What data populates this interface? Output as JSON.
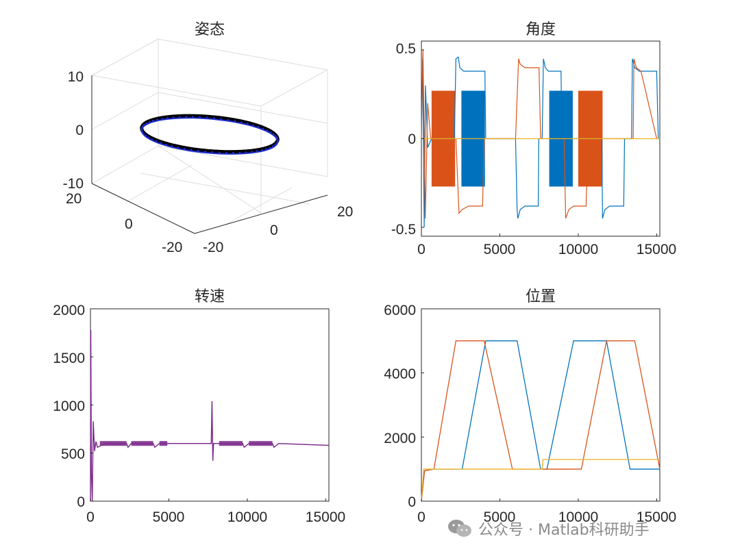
{
  "chart_data": [
    {
      "panel": "attitude",
      "type": "scatter",
      "title": "姿态",
      "subtitle": "3D",
      "xlim": [
        -20,
        20
      ],
      "ylim": [
        -20,
        20
      ],
      "zlim": [
        -10,
        10
      ],
      "xticks": [
        "-20",
        "0",
        "20"
      ],
      "yticks": [
        "-20",
        "0",
        "20"
      ],
      "zticks": [
        "-10",
        "0",
        "10"
      ],
      "ring": {
        "radius": 15,
        "z": 0,
        "colors": [
          "#000000",
          "#1f2fd0"
        ]
      },
      "grid": true
    },
    {
      "panel": "angle",
      "type": "line",
      "title": "角度",
      "xlim": [
        0,
        15200
      ],
      "ylim": [
        -0.55,
        0.55
      ],
      "xticks": [
        "0",
        "5000",
        "10000",
        "15000"
      ],
      "yticks": [
        "-0.5",
        "0",
        "0.5"
      ],
      "series": [
        {
          "color": "#0072BD",
          "points": [
            [
              0,
              0
            ],
            [
              80,
              0.45
            ],
            [
              180,
              -0.5
            ],
            [
              260,
              0.3
            ],
            [
              400,
              -0.05
            ],
            [
              650,
              0
            ],
            [
              2100,
              0
            ],
            [
              2200,
              0.45
            ],
            [
              2350,
              0.46
            ],
            [
              2450,
              0.4
            ],
            [
              2700,
              0.38
            ],
            [
              3500,
              0.38
            ],
            [
              4050,
              0.38
            ],
            [
              4100,
              0
            ],
            [
              6000,
              0
            ],
            [
              6100,
              -0.4
            ],
            [
              6150,
              -0.45
            ],
            [
              6300,
              -0.4
            ],
            [
              6600,
              -0.38
            ],
            [
              7450,
              -0.38
            ],
            [
              7480,
              0
            ],
            [
              7700,
              0
            ],
            [
              7780,
              0.45
            ],
            [
              7900,
              0.4
            ],
            [
              8100,
              0.38
            ],
            [
              8900,
              0.38
            ],
            [
              8950,
              0
            ],
            [
              11500,
              0
            ],
            [
              11550,
              -0.45
            ],
            [
              11700,
              -0.4
            ],
            [
              12000,
              -0.38
            ],
            [
              12900,
              -0.38
            ],
            [
              12950,
              0
            ],
            [
              13400,
              0
            ],
            [
              13450,
              0.45
            ],
            [
              13600,
              0.4
            ],
            [
              13900,
              0.38
            ],
            [
              15000,
              0.38
            ],
            [
              15100,
              0
            ]
          ]
        },
        {
          "color": "#D95319",
          "points": [
            [
              0,
              0
            ],
            [
              100,
              0.5
            ],
            [
              250,
              -0.45
            ],
            [
              400,
              0.2
            ],
            [
              600,
              0
            ],
            [
              2200,
              0
            ],
            [
              2400,
              -0.42
            ],
            [
              2600,
              -0.4
            ],
            [
              3000,
              -0.38
            ],
            [
              3900,
              -0.38
            ],
            [
              4000,
              0
            ],
            [
              6000,
              0
            ],
            [
              6200,
              0.45
            ],
            [
              6300,
              0.42
            ],
            [
              6600,
              0.4
            ],
            [
              7500,
              0.4
            ],
            [
              7600,
              0
            ],
            [
              9100,
              0
            ],
            [
              9200,
              -0.45
            ],
            [
              9400,
              -0.4
            ],
            [
              9700,
              -0.38
            ],
            [
              10500,
              -0.38
            ],
            [
              10600,
              0
            ],
            [
              13500,
              0
            ],
            [
              13550,
              0.45
            ],
            [
              13700,
              0.4
            ],
            [
              14000,
              0.38
            ],
            [
              15000,
              0
            ],
            [
              15100,
              0
            ]
          ]
        },
        {
          "color": "#EDB120",
          "points": [
            [
              0,
              0
            ],
            [
              15200,
              0
            ]
          ]
        }
      ],
      "bands": [
        {
          "color": "#D95319",
          "x0": 650,
          "x1": 2150,
          "y0": -0.27,
          "y1": 0.27
        },
        {
          "color": "#0072BD",
          "x0": 2550,
          "x1": 4050,
          "y0": -0.27,
          "y1": 0.27
        },
        {
          "color": "#0072BD",
          "x0": 8150,
          "x1": 9650,
          "y0": -0.27,
          "y1": 0.27
        },
        {
          "color": "#D95319",
          "x0": 10000,
          "x1": 11550,
          "y0": -0.27,
          "y1": 0.27
        }
      ],
      "grid": false
    },
    {
      "panel": "speed",
      "type": "line",
      "title": "转速",
      "xlim": [
        0,
        15200
      ],
      "ylim": [
        0,
        2000
      ],
      "xticks": [
        "0",
        "5000",
        "10000",
        "15000"
      ],
      "yticks": [
        "0",
        "500",
        "1000",
        "1500",
        "2000"
      ],
      "series": [
        {
          "color": "#7E2F8E",
          "points": [
            [
              0,
              0
            ],
            [
              20,
              1780
            ],
            [
              60,
              300
            ],
            [
              120,
              0
            ],
            [
              180,
              830
            ],
            [
              260,
              520
            ],
            [
              350,
              620
            ],
            [
              450,
              560
            ],
            [
              700,
              580
            ],
            [
              1000,
              600
            ],
            [
              2300,
              600
            ],
            [
              2400,
              560
            ],
            [
              2600,
              600
            ],
            [
              4000,
              600
            ],
            [
              4100,
              560
            ],
            [
              4400,
              600
            ],
            [
              5000,
              600
            ],
            [
              7700,
              600
            ],
            [
              7750,
              1040
            ],
            [
              7800,
              420
            ],
            [
              7850,
              600
            ],
            [
              8200,
              600
            ],
            [
              9700,
              600
            ],
            [
              9800,
              560
            ],
            [
              10100,
              600
            ],
            [
              11600,
              600
            ],
            [
              11700,
              560
            ],
            [
              12000,
              600
            ],
            [
              15200,
              580
            ]
          ]
        }
      ],
      "noisy_ranges": [
        [
          600,
          2300
        ],
        [
          2600,
          4000
        ],
        [
          4400,
          4900
        ],
        [
          8200,
          9700
        ],
        [
          10100,
          11600
        ]
      ],
      "grid": false
    },
    {
      "panel": "position",
      "type": "line",
      "title": "位置",
      "xlim": [
        0,
        15200
      ],
      "ylim": [
        0,
        6000
      ],
      "xticks": [
        "0",
        "5000",
        "10000",
        "15000"
      ],
      "yticks": [
        "0",
        "2000",
        "4000",
        "6000"
      ],
      "series": [
        {
          "color": "#0072BD",
          "points": [
            [
              0,
              0
            ],
            [
              200,
              950
            ],
            [
              800,
              1000
            ],
            [
              2600,
              1000
            ],
            [
              4100,
              5000
            ],
            [
              6100,
              5000
            ],
            [
              7600,
              1000
            ],
            [
              8000,
              1000
            ],
            [
              9700,
              5000
            ],
            [
              11800,
              5000
            ],
            [
              13300,
              1000
            ],
            [
              15200,
              1000
            ]
          ]
        },
        {
          "color": "#D95319",
          "points": [
            [
              0,
              0
            ],
            [
              200,
              950
            ],
            [
              800,
              1000
            ],
            [
              2200,
              5000
            ],
            [
              4000,
              5000
            ],
            [
              5800,
              1000
            ],
            [
              10200,
              1000
            ],
            [
              11800,
              5000
            ],
            [
              13600,
              5000
            ],
            [
              15200,
              1000
            ]
          ]
        },
        {
          "color": "#EDB120",
          "points": [
            [
              0,
              0
            ],
            [
              150,
              1000
            ],
            [
              7700,
              1000
            ],
            [
              7750,
              1300
            ],
            [
              15200,
              1300
            ]
          ]
        }
      ],
      "grid": false
    }
  ],
  "watermark": {
    "text": "公众号 · Matlab科研助手"
  }
}
